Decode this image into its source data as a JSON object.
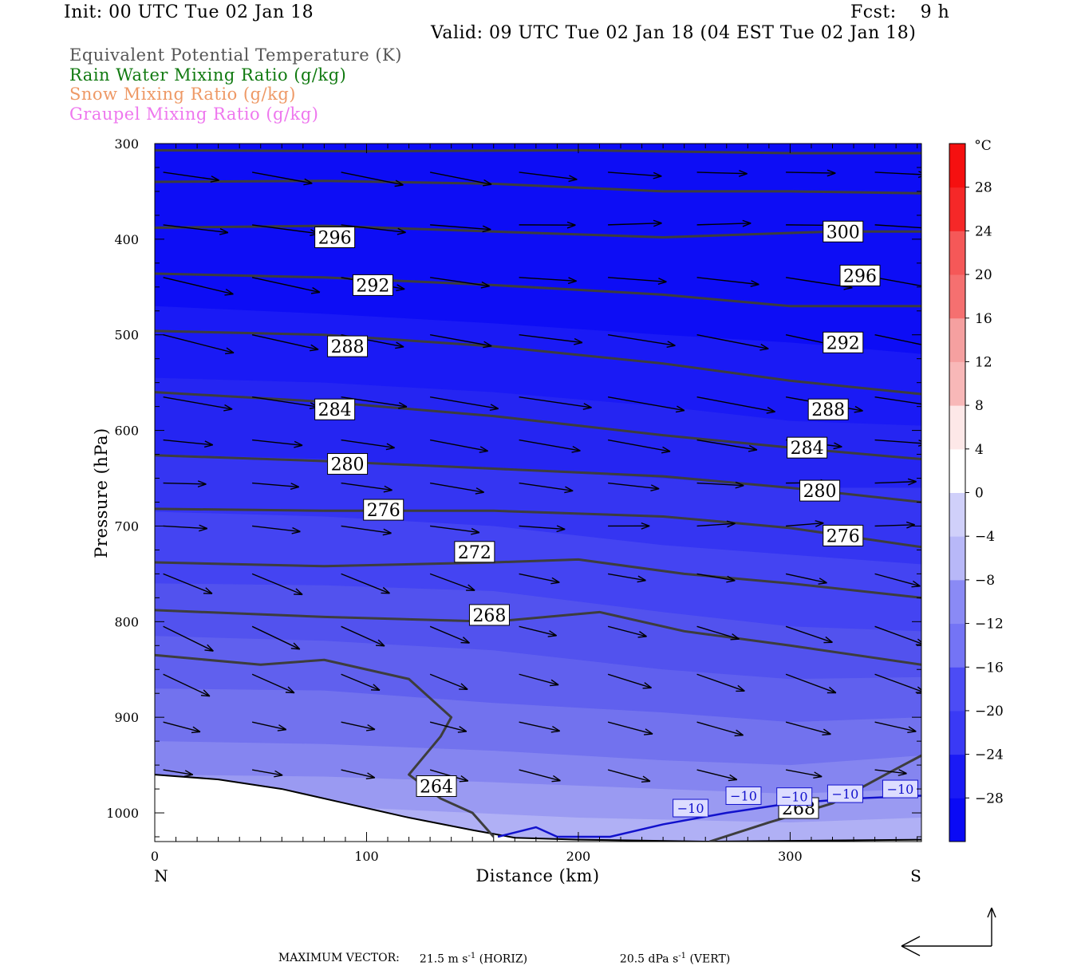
{
  "header": {
    "init": "Init: 00 UTC Tue 02 Jan 18",
    "fcst": "Fcst:    9 h",
    "valid": "Valid: 09 UTC Tue 02 Jan 18 (04 EST Tue 02 Jan 18)"
  },
  "legend": [
    {
      "label": "Equivalent Potential Temperature (K)",
      "color": "#555555"
    },
    {
      "label": "Rain Water Mixing Ratio (g/kg)",
      "color": "#117a11"
    },
    {
      "label": "Snow Mixing Ratio (g/kg)",
      "color": "#ee9966"
    },
    {
      "label": "Graupel Mixing Ratio (g/kg)",
      "color": "#ee77ee"
    }
  ],
  "chart_data": {
    "type": "cross-section",
    "xlabel": "Distance (km)",
    "ylabel": "Pressure (hPa)",
    "xlim": [
      0,
      362
    ],
    "ylim": [
      1030,
      300
    ],
    "x_ticks": [
      0,
      100,
      200,
      300
    ],
    "y_ticks": [
      300,
      400,
      500,
      600,
      700,
      800,
      900,
      1000
    ],
    "x_end_labels": {
      "left": "N",
      "right": "S"
    },
    "colorbar": {
      "unit": "°C",
      "levels": [
        -32,
        -28,
        -24,
        -20,
        -16,
        -12,
        -8,
        -4,
        0,
        4,
        8,
        12,
        16,
        20,
        24,
        28,
        32
      ],
      "tick_labels": [
        "28",
        "24",
        "20",
        "16",
        "12",
        "8",
        "4",
        "0",
        "−4",
        "−8",
        "−12",
        "−16",
        "−20",
        "−24",
        "−28"
      ]
    },
    "theta_e_contours": [
      {
        "value": 300,
        "label_x": 325,
        "label_p": 392
      },
      {
        "value": 296,
        "label_x": 85,
        "label_p": 398
      },
      {
        "value": 296,
        "label_x": 333,
        "label_p": 438
      },
      {
        "value": 292,
        "label_x": 103,
        "label_p": 448
      },
      {
        "value": 292,
        "label_x": 325,
        "label_p": 508
      },
      {
        "value": 288,
        "label_x": 91,
        "label_p": 512
      },
      {
        "value": 288,
        "label_x": 318,
        "label_p": 578
      },
      {
        "value": 284,
        "label_x": 85,
        "label_p": 578
      },
      {
        "value": 284,
        "label_x": 308,
        "label_p": 618
      },
      {
        "value": 280,
        "label_x": 91,
        "label_p": 635
      },
      {
        "value": 280,
        "label_x": 314,
        "label_p": 663
      },
      {
        "value": 276,
        "label_x": 108,
        "label_p": 683
      },
      {
        "value": 276,
        "label_x": 325,
        "label_p": 710
      },
      {
        "value": 272,
        "label_x": 151,
        "label_p": 727
      },
      {
        "value": 268,
        "label_x": 158,
        "label_p": 793
      },
      {
        "value": 268,
        "label_x": 304,
        "label_p": 995
      },
      {
        "value": 264,
        "label_x": 133,
        "label_p": 972
      }
    ],
    "temperature_labels": [
      {
        "value": "−10",
        "x": 253,
        "p": 995
      },
      {
        "value": "−10",
        "x": 278,
        "p": 982
      },
      {
        "value": "−10",
        "x": 302,
        "p": 983
      },
      {
        "value": "−10",
        "x": 326,
        "p": 980
      },
      {
        "value": "−10",
        "x": 352,
        "p": 975
      }
    ]
  },
  "footer": {
    "max_vector_label": "MAXIMUM VECTOR:",
    "horiz_value": "21.5 m s",
    "horiz_unit": " (HORIZ)",
    "vert_value": "20.5 dPa s",
    "vert_unit": " (VERT)",
    "exponent": "-1"
  }
}
